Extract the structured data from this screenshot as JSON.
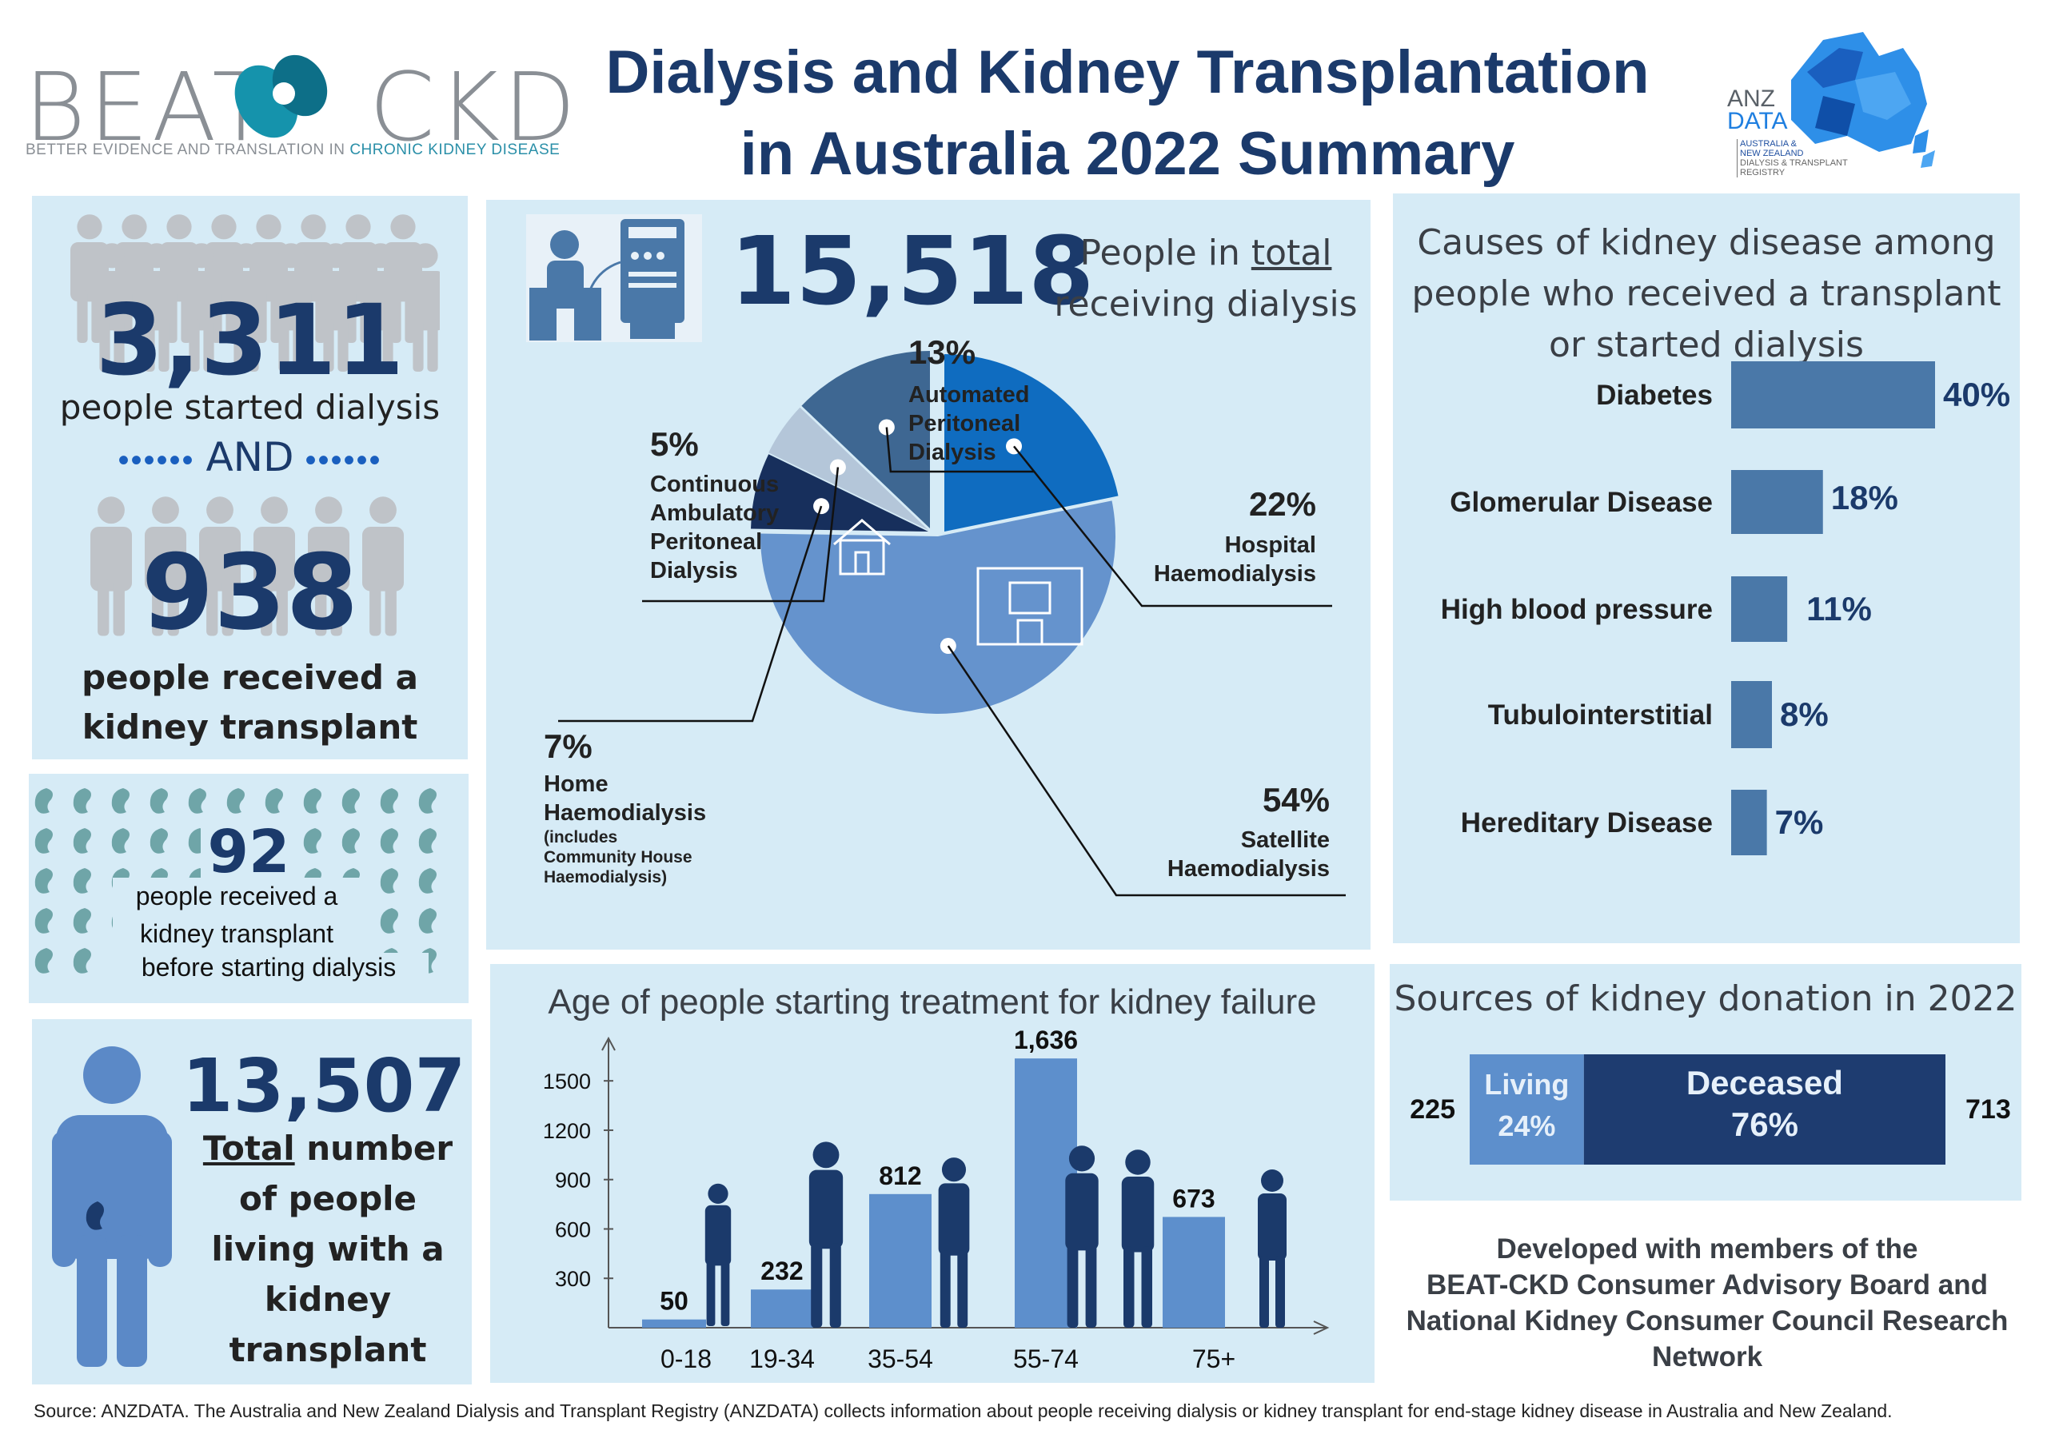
{
  "header": {
    "title_line1": "Dialysis and Kidney Transplantation",
    "title_line2": "in Australia 2022 Summary",
    "beat_logo_left": "BEAT",
    "beat_logo_right": "CKD",
    "beat_tagline_a": "BETTER EVIDENCE AND TRANSLATION IN ",
    "beat_tagline_b": "CHRONIC KIDNEY DISEASE",
    "anz_logo_1": "ANZ",
    "anz_logo_2": "DATA",
    "anz_logo_3": "AUSTRALIA &",
    "anz_logo_4": "NEW ZEALAND",
    "anz_logo_5": "DIALYSIS & TRANSPLANT",
    "anz_logo_6": "REGISTRY"
  },
  "started": {
    "dialysis_number": "3,311",
    "dialysis_label": "people started dialysis",
    "and_label": "AND",
    "transplant_number": "938",
    "transplant_label_1": "people received a",
    "transplant_label_2": "kidney transplant"
  },
  "preemptive": {
    "number": "92",
    "line1": "people received a",
    "line2": "kidney transplant",
    "line3": "before starting dialysis"
  },
  "living": {
    "number": "13,507",
    "line1_u": "Total",
    "line1_rest": " number",
    "line2": "of people",
    "line3": "living with a",
    "line4": "kidney",
    "line5": "transplant"
  },
  "dialysis": {
    "number": "15,518",
    "label_1a": "People in ",
    "label_1b": "total",
    "label_2": "receiving dialysis",
    "labels": [
      {
        "pct": "13%",
        "l1": "Automated",
        "l2": "Peritoneal",
        "l3": "Dialysis",
        "l4": ""
      },
      {
        "pct": "5%",
        "l1": "Continuous",
        "l2": "Ambulatory",
        "l3": "Peritoneal",
        "l4": "Dialysis"
      },
      {
        "pct": "22%",
        "l1": "Hospital",
        "l2": "Haemodialysis",
        "l3": "",
        "l4": ""
      },
      {
        "pct": "7%",
        "l1": "Home",
        "l2": "Haemodialysis",
        "l3": "(includes",
        "l4": "Community House",
        "l5": "Haemodialysis)"
      },
      {
        "pct": "54%",
        "l1": "Satellite",
        "l2": "Haemodialysis",
        "l3": "",
        "l4": ""
      }
    ]
  },
  "causes": {
    "title_1": "Causes of kidney disease among",
    "title_2": "people who received a transplant",
    "title_3": "or started dialysis"
  },
  "sources": {
    "title": "Sources of kidney donation in 2022",
    "living_count": "225",
    "deceased_count": "713",
    "living_label": "Living",
    "living_pct": "24%",
    "deceased_label": "Deceased",
    "deceased_pct": "76%"
  },
  "credit": {
    "line1": "Developed with members of the",
    "line2": "BEAT-CKD Consumer Advisory Board and",
    "line3": "National Kidney Consumer Council Research",
    "line4": "Network"
  },
  "footer": {
    "source": "Source: ANZDATA. The Australia and New  Zealand Dialysis and Transplant Registry (ANZDATA) collects information about people receiving dialysis or kidney transplant for end-stage kidney disease in Australia and New  Zealand."
  },
  "colors": {
    "navy": "#1b3a6b",
    "panel": "#d6ebf6",
    "bar": "#5d8fcc",
    "cause_bar": "#4a78a8",
    "deceased": "#1e3c70",
    "living": "#5d8fcc"
  },
  "chart_data": [
    {
      "type": "pie",
      "title": "",
      "categories": [
        "Satellite Haemodialysis",
        "Hospital Haemodialysis",
        "Automated Peritoneal Dialysis",
        "Home Haemodialysis",
        "Continuous Ambulatory Peritoneal Dialysis"
      ],
      "values": [
        54,
        22,
        13,
        7,
        5
      ],
      "colors": [
        "#6593cd",
        "#0f6cc0",
        "#3e6792",
        "#172f5c",
        "#b4c6d9"
      ]
    },
    {
      "type": "bar",
      "title": "Age of people starting treatment for kidney failure",
      "categories": [
        "0-18",
        "19-34",
        "35-54",
        "55-74",
        "75+"
      ],
      "values": [
        50,
        232,
        812,
        1636,
        673
      ],
      "value_labels": [
        "50",
        "232",
        "812",
        "1,636",
        "673"
      ],
      "yticks": [
        300,
        600,
        900,
        1200,
        1500
      ],
      "ylim": [
        0,
        1700
      ],
      "xlabel": "",
      "ylabel": ""
    },
    {
      "type": "bar",
      "orientation": "horizontal",
      "title": "Causes of kidney disease among people who received a transplant or started dialysis",
      "categories": [
        "Diabetes",
        "Glomerular Disease",
        "High blood pressure",
        "Tubulointerstitial",
        "Hereditary Disease"
      ],
      "values": [
        40,
        18,
        11,
        8,
        7
      ],
      "value_labels": [
        "40%",
        "18%",
        "11%",
        "8%",
        "7%"
      ]
    },
    {
      "type": "bar",
      "orientation": "horizontal-stacked",
      "title": "Sources of kidney donation in 2022",
      "categories": [
        "Living",
        "Deceased"
      ],
      "values": [
        225,
        713
      ],
      "percent": [
        24,
        76
      ]
    }
  ]
}
